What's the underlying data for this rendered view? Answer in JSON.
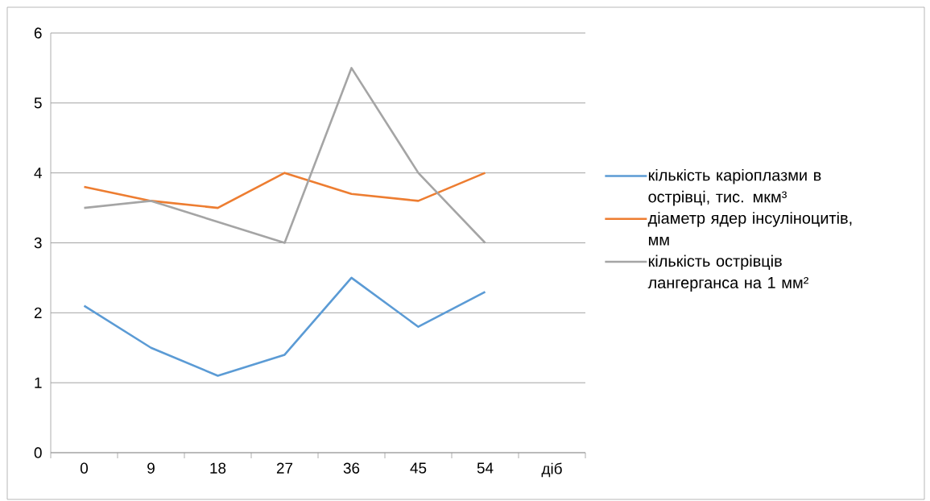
{
  "chart_data": {
    "type": "line",
    "categories": [
      "0",
      "9",
      "18",
      "27",
      "36",
      "45",
      "54",
      "діб"
    ],
    "series": [
      {
        "name": "кількість каріоплазми в острівці, тис. мкм³",
        "color": "#5b9bd5",
        "values": [
          2.1,
          1.5,
          1.1,
          1.4,
          2.5,
          1.8,
          2.3,
          null
        ]
      },
      {
        "name": "діаметр ядер інсуліноцитів, мм",
        "color": "#ed7d31",
        "values": [
          3.8,
          3.6,
          3.5,
          4.0,
          3.7,
          3.6,
          4.0,
          null
        ]
      },
      {
        "name": "кількість острівців лангерганса на 1 мм²",
        "color": "#a5a5a5",
        "values": [
          3.5,
          3.6,
          3.3,
          3.0,
          5.5,
          4.0,
          3.0,
          null
        ]
      }
    ],
    "ylim": [
      0,
      6
    ],
    "yticks": [
      0,
      1,
      2,
      3,
      4,
      5,
      6
    ],
    "grid": "y",
    "legend": "right",
    "marker": "none",
    "line_style": "solid"
  }
}
